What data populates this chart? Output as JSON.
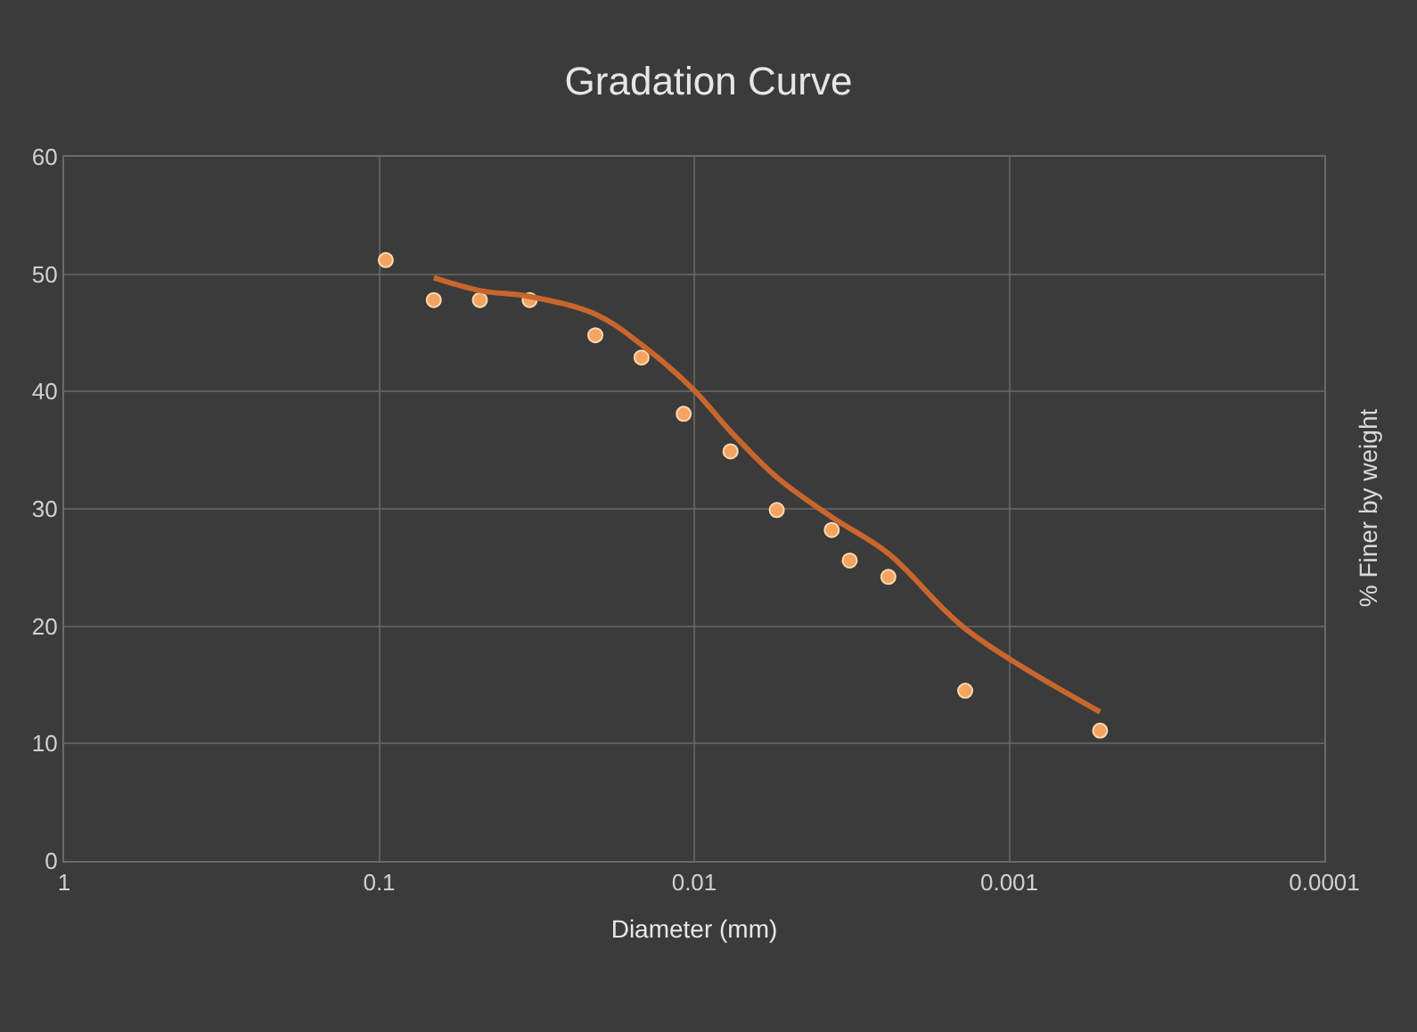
{
  "chart_data": {
    "type": "scatter",
    "title": "Gradation Curve",
    "xlabel": "Diameter (mm)",
    "ylabel": "% Finer by weight",
    "log": "x",
    "xlim": [
      1,
      0.0001
    ],
    "xticks": [
      1,
      0.1,
      0.01,
      0.001,
      0.0001
    ],
    "ylim": [
      0,
      60
    ],
    "yticks": [
      0,
      10,
      20,
      30,
      40,
      50,
      60
    ],
    "grid": true,
    "legend": false,
    "series": [
      {
        "color": "#f4a460",
        "marker": "circle",
        "x": [
          0.0953,
          0.0671,
          0.0479,
          0.0333,
          0.0206,
          0.0147,
          0.0108,
          0.00767,
          0.00547,
          0.00366,
          0.00321,
          0.00242,
          0.00138,
          0.000515
        ],
        "values": [
          51.2,
          47.8,
          47.8,
          47.8,
          44.8,
          42.9,
          38.1,
          34.9,
          29.9,
          28.2,
          25.6,
          24.2,
          14.5,
          11.1
        ]
      },
      {
        "type": "line",
        "marker": "none",
        "color": "#c8662e",
        "line_style": "solid",
        "x": [
          0.0671,
          0.0479,
          0.0333,
          0.0206,
          0.0147,
          0.01,
          0.00767,
          0.00547,
          0.00366,
          0.00242,
          0.00138,
          0.000515
        ],
        "values": [
          49.7,
          48.6,
          48.1,
          46.6,
          44.0,
          40.1,
          36.6,
          32.7,
          29.3,
          26.2,
          19.8,
          12.7
        ]
      }
    ]
  }
}
